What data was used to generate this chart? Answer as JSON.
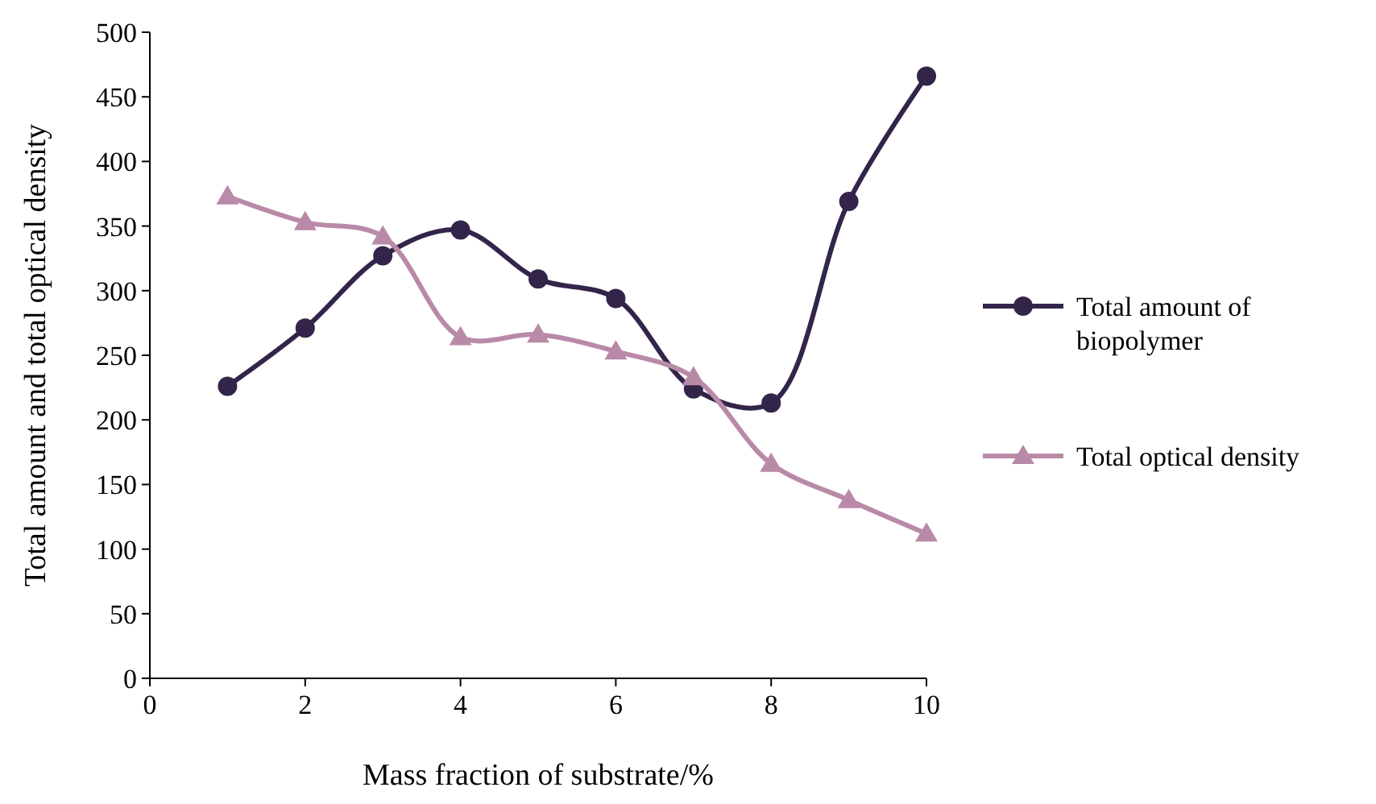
{
  "chart_data": {
    "type": "line",
    "xlabel": "Mass fraction of substrate/%",
    "ylabel": "Total amount and total optical density",
    "x": [
      1,
      2,
      3,
      4,
      5,
      6,
      7,
      8,
      9,
      10
    ],
    "xlim": [
      0,
      10
    ],
    "xticks": [
      0,
      2,
      4,
      6,
      8,
      10
    ],
    "ylim": [
      0,
      500
    ],
    "yticks": [
      0,
      50,
      100,
      150,
      200,
      250,
      300,
      350,
      400,
      450,
      500
    ],
    "legend": "right",
    "grid": false,
    "series": [
      {
        "name": "Total amount of biopolymer",
        "color": "#33254a",
        "marker": "circle",
        "values": [
          226,
          271,
          327,
          347,
          309,
          294,
          224,
          213,
          369,
          466
        ]
      },
      {
        "name": "Total optical density",
        "color": "#b98aa8",
        "marker": "triangle",
        "values": [
          373,
          353,
          342,
          264,
          266,
          253,
          233,
          166,
          138,
          112
        ]
      }
    ]
  }
}
